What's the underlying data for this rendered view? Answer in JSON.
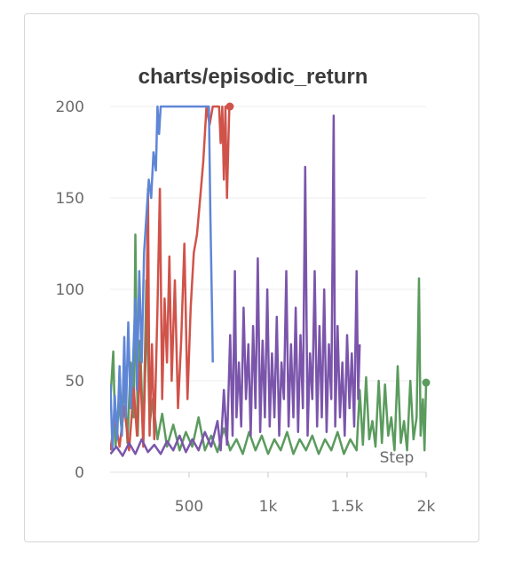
{
  "chart_data": {
    "type": "line",
    "title": "charts/episodic_return",
    "xlabel": "Step",
    "ylabel": "",
    "xlim": [
      0,
      2000
    ],
    "ylim": [
      0,
      200
    ],
    "x_ticks": [
      {
        "value": 500,
        "label": "500"
      },
      {
        "value": 1000,
        "label": "1k"
      },
      {
        "value": 1500,
        "label": "1.5k"
      },
      {
        "value": 2000,
        "label": "2k"
      }
    ],
    "y_ticks": [
      {
        "value": 0,
        "label": "0"
      },
      {
        "value": 50,
        "label": "50"
      },
      {
        "value": 100,
        "label": "100"
      },
      {
        "value": 150,
        "label": "150"
      },
      {
        "value": 200,
        "label": "200"
      }
    ],
    "grid": true,
    "legend": "none",
    "series": [
      {
        "color": "#5b9b5e",
        "end_marker": true,
        "points": [
          [
            2,
            40
          ],
          [
            20,
            66
          ],
          [
            35,
            14
          ],
          [
            55,
            38
          ],
          [
            75,
            22
          ],
          [
            90,
            52
          ],
          [
            110,
            16
          ],
          [
            130,
            60
          ],
          [
            150,
            30
          ],
          [
            160,
            130
          ],
          [
            175,
            20
          ],
          [
            190,
            72
          ],
          [
            210,
            18
          ],
          [
            230,
            105
          ],
          [
            250,
            26
          ],
          [
            270,
            40
          ],
          [
            300,
            18
          ],
          [
            330,
            32
          ],
          [
            360,
            14
          ],
          [
            400,
            26
          ],
          [
            440,
            12
          ],
          [
            480,
            22
          ],
          [
            520,
            14
          ],
          [
            560,
            30
          ],
          [
            600,
            12
          ],
          [
            640,
            20
          ],
          [
            680,
            11
          ],
          [
            720,
            24
          ],
          [
            760,
            12
          ],
          [
            800,
            18
          ],
          [
            840,
            10
          ],
          [
            880,
            22
          ],
          [
            920,
            12
          ],
          [
            960,
            20
          ],
          [
            1000,
            10
          ],
          [
            1040,
            18
          ],
          [
            1080,
            12
          ],
          [
            1120,
            22
          ],
          [
            1160,
            10
          ],
          [
            1200,
            18
          ],
          [
            1240,
            12
          ],
          [
            1280,
            20
          ],
          [
            1320,
            10
          ],
          [
            1360,
            18
          ],
          [
            1400,
            12
          ],
          [
            1440,
            22
          ],
          [
            1480,
            10
          ],
          [
            1520,
            18
          ],
          [
            1560,
            12
          ],
          [
            1580,
            45
          ],
          [
            1600,
            15
          ],
          [
            1620,
            52
          ],
          [
            1640,
            18
          ],
          [
            1660,
            28
          ],
          [
            1680,
            14
          ],
          [
            1700,
            50
          ],
          [
            1720,
            16
          ],
          [
            1740,
            48
          ],
          [
            1760,
            20
          ],
          [
            1780,
            30
          ],
          [
            1800,
            12
          ],
          [
            1820,
            58
          ],
          [
            1840,
            16
          ],
          [
            1860,
            28
          ],
          [
            1880,
            12
          ],
          [
            1900,
            50
          ],
          [
            1920,
            18
          ],
          [
            1940,
            30
          ],
          [
            1955,
            106
          ],
          [
            1965,
            20
          ],
          [
            1980,
            40
          ],
          [
            1990,
            12
          ],
          [
            2000,
            49
          ]
        ]
      },
      {
        "color": "#d0534a",
        "end_marker": true,
        "points": [
          [
            2,
            12
          ],
          [
            30,
            30
          ],
          [
            60,
            14
          ],
          [
            90,
            36
          ],
          [
            120,
            12
          ],
          [
            150,
            46
          ],
          [
            170,
            20
          ],
          [
            190,
            60
          ],
          [
            210,
            14
          ],
          [
            230,
            80
          ],
          [
            240,
            155
          ],
          [
            250,
            20
          ],
          [
            265,
            70
          ],
          [
            280,
            18
          ],
          [
            300,
            90
          ],
          [
            315,
            155
          ],
          [
            330,
            40
          ],
          [
            345,
            95
          ],
          [
            360,
            60
          ],
          [
            375,
            118
          ],
          [
            390,
            50
          ],
          [
            410,
            105
          ],
          [
            430,
            35
          ],
          [
            450,
            72
          ],
          [
            470,
            125
          ],
          [
            490,
            40
          ],
          [
            510,
            90
          ],
          [
            530,
            120
          ],
          [
            550,
            130
          ],
          [
            570,
            150
          ],
          [
            590,
            170
          ],
          [
            610,
            200
          ],
          [
            630,
            190
          ],
          [
            650,
            200
          ],
          [
            670,
            200
          ],
          [
            690,
            200
          ],
          [
            700,
            180
          ],
          [
            710,
            200
          ],
          [
            720,
            160
          ],
          [
            730,
            200
          ],
          [
            740,
            150
          ],
          [
            750,
            185
          ],
          [
            755,
            200
          ],
          [
            758,
            200
          ]
        ]
      },
      {
        "color": "#5f86d6",
        "end_marker": false,
        "points": [
          [
            2,
            48
          ],
          [
            15,
            12
          ],
          [
            30,
            42
          ],
          [
            45,
            18
          ],
          [
            60,
            58
          ],
          [
            75,
            20
          ],
          [
            90,
            74
          ],
          [
            100,
            30
          ],
          [
            115,
            82
          ],
          [
            130,
            35
          ],
          [
            145,
            60
          ],
          [
            160,
            95
          ],
          [
            170,
            45
          ],
          [
            185,
            110
          ],
          [
            200,
            60
          ],
          [
            215,
            120
          ],
          [
            230,
            140
          ],
          [
            245,
            160
          ],
          [
            260,
            150
          ],
          [
            275,
            175
          ],
          [
            290,
            165
          ],
          [
            300,
            200
          ],
          [
            310,
            185
          ],
          [
            320,
            200
          ],
          [
            340,
            200
          ],
          [
            360,
            200
          ],
          [
            380,
            200
          ],
          [
            400,
            200
          ],
          [
            420,
            200
          ],
          [
            440,
            200
          ],
          [
            460,
            200
          ],
          [
            480,
            200
          ],
          [
            500,
            200
          ],
          [
            520,
            200
          ],
          [
            540,
            200
          ],
          [
            560,
            200
          ],
          [
            580,
            200
          ],
          [
            600,
            200
          ],
          [
            615,
            200
          ],
          [
            625,
            200
          ],
          [
            635,
            140
          ],
          [
            645,
            90
          ],
          [
            650,
            60
          ]
        ]
      },
      {
        "color": "#7b55ab",
        "end_marker": false,
        "points": [
          [
            2,
            10
          ],
          [
            40,
            14
          ],
          [
            80,
            9
          ],
          [
            120,
            16
          ],
          [
            160,
            10
          ],
          [
            200,
            18
          ],
          [
            240,
            11
          ],
          [
            280,
            15
          ],
          [
            320,
            10
          ],
          [
            360,
            17
          ],
          [
            400,
            12
          ],
          [
            440,
            20
          ],
          [
            480,
            11
          ],
          [
            520,
            18
          ],
          [
            560,
            12
          ],
          [
            600,
            22
          ],
          [
            640,
            14
          ],
          [
            680,
            28
          ],
          [
            700,
            12
          ],
          [
            720,
            45
          ],
          [
            740,
            15
          ],
          [
            760,
            75
          ],
          [
            775,
            20
          ],
          [
            790,
            110
          ],
          [
            800,
            30
          ],
          [
            815,
            60
          ],
          [
            830,
            25
          ],
          [
            845,
            90
          ],
          [
            860,
            40
          ],
          [
            875,
            70
          ],
          [
            890,
            20
          ],
          [
            905,
            80
          ],
          [
            920,
            35
          ],
          [
            935,
            117
          ],
          [
            950,
            22
          ],
          [
            965,
            72
          ],
          [
            980,
            30
          ],
          [
            995,
            100
          ],
          [
            1010,
            25
          ],
          [
            1025,
            65
          ],
          [
            1040,
            30
          ],
          [
            1055,
            85
          ],
          [
            1070,
            20
          ],
          [
            1085,
            60
          ],
          [
            1100,
            40
          ],
          [
            1115,
            110
          ],
          [
            1130,
            25
          ],
          [
            1145,
            70
          ],
          [
            1160,
            30
          ],
          [
            1175,
            90
          ],
          [
            1190,
            22
          ],
          [
            1205,
            75
          ],
          [
            1220,
            35
          ],
          [
            1235,
            167
          ],
          [
            1250,
            20
          ],
          [
            1265,
            65
          ],
          [
            1280,
            40
          ],
          [
            1295,
            110
          ],
          [
            1310,
            25
          ],
          [
            1325,
            80
          ],
          [
            1340,
            30
          ],
          [
            1355,
            100
          ],
          [
            1370,
            22
          ],
          [
            1385,
            70
          ],
          [
            1400,
            40
          ],
          [
            1415,
            195
          ],
          [
            1425,
            25
          ],
          [
            1440,
            80
          ],
          [
            1455,
            30
          ],
          [
            1470,
            60
          ],
          [
            1485,
            20
          ],
          [
            1500,
            75
          ],
          [
            1515,
            35
          ],
          [
            1530,
            65
          ],
          [
            1545,
            25
          ],
          [
            1560,
            110
          ],
          [
            1570,
            40
          ],
          [
            1580,
            70
          ]
        ]
      }
    ]
  }
}
